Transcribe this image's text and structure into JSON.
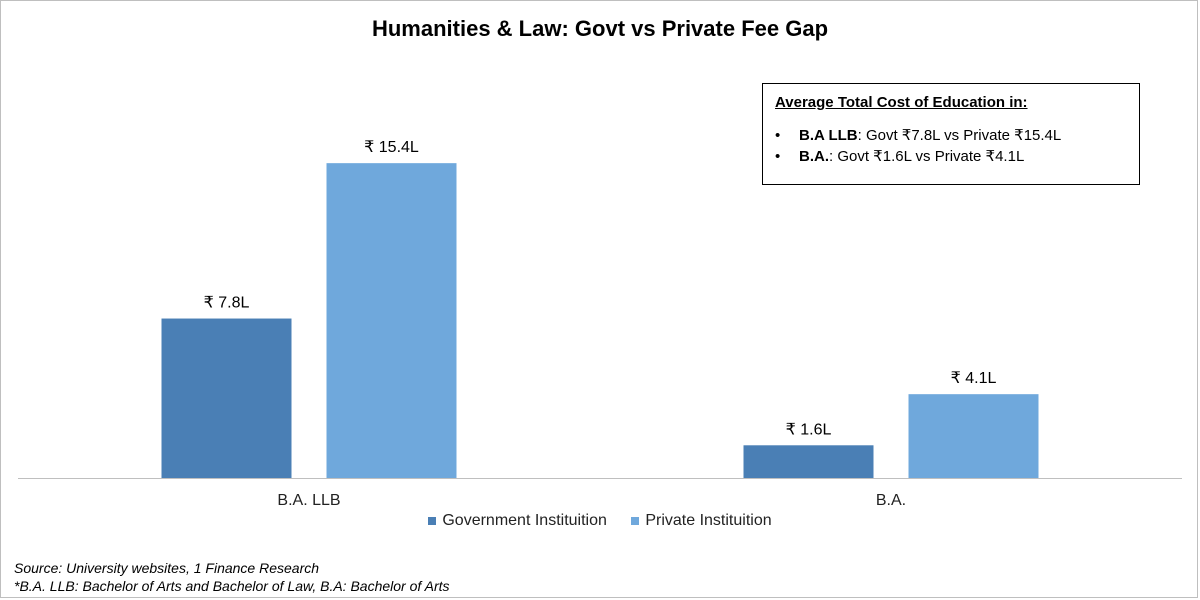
{
  "chart_data": {
    "type": "bar",
    "title": "Humanities & Law: Govt vs Private Fee Gap",
    "categories": [
      "B.A. LLB",
      "B.A."
    ],
    "series": [
      {
        "name": "Government Instituition",
        "values": [
          7.8,
          1.6
        ],
        "labels": [
          "₹ 7.8L",
          "₹ 1.6L"
        ],
        "color": "#4a7fb5"
      },
      {
        "name": "Private Instituition",
        "values": [
          15.4,
          4.1
        ],
        "labels": [
          "₹ 15.4L",
          "₹ 4.1L"
        ],
        "color": "#6fa8dc"
      }
    ],
    "unit": "₹ Lakh",
    "ylim": [
      0,
      18
    ],
    "grid": false,
    "legend_position": "bottom"
  },
  "info_box": {
    "heading": "Average Total Cost of Education in:",
    "items": [
      {
        "bold": "B.A LLB",
        "text": ": Govt ₹7.8L vs Private ₹15.4L"
      },
      {
        "bold": "B.A.",
        "text": ": Govt ₹1.6L vs Private ₹4.1L"
      }
    ]
  },
  "footnotes": {
    "source": "Source: University websites, 1 Finance Research",
    "note": "*B.A. LLB: Bachelor of Arts and Bachelor of Law, B.A: Bachelor of Arts"
  }
}
